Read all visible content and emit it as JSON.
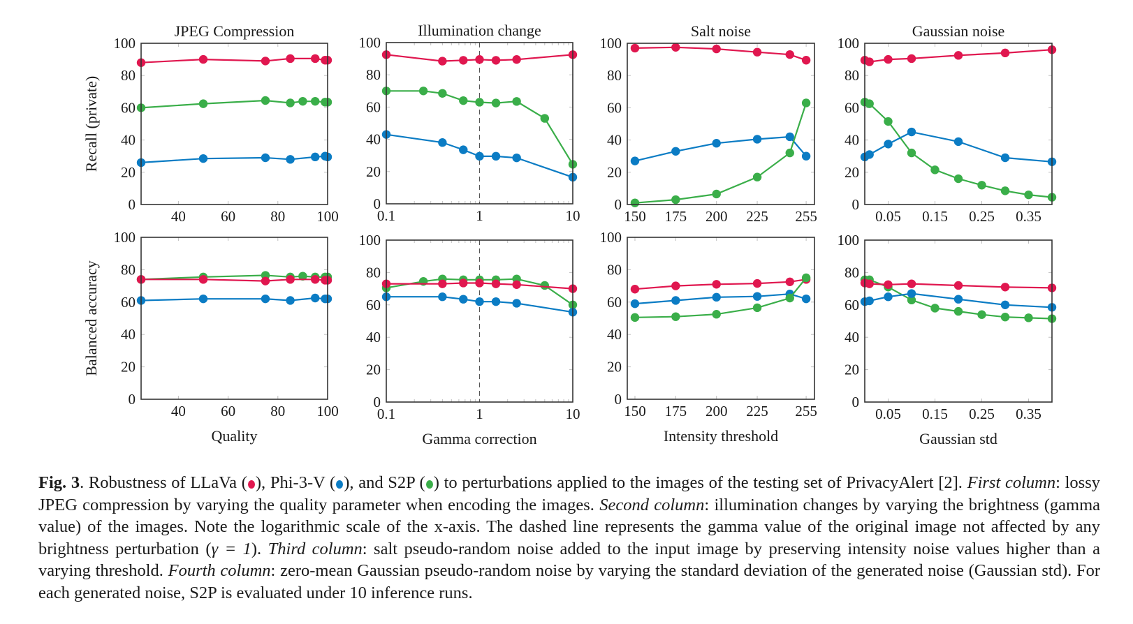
{
  "colors": {
    "LLaVa": "#e0174f",
    "Phi-3-V": "#0b7cc4",
    "S2P": "#3aae49",
    "frame": "#333333",
    "grid": "#bfbfbf"
  },
  "chart_data": [
    {
      "type": "line",
      "id": "jpeg-recall",
      "title": "JPEG Compression",
      "xlabel": "",
      "ylabel": "Recall (private)",
      "xscale": "linear",
      "xlim": [
        25,
        100
      ],
      "ylim": [
        0,
        100
      ],
      "xticks": [
        40,
        60,
        80,
        100
      ],
      "xtick_labels": [
        "40",
        "60",
        "80",
        "100"
      ],
      "yticks": [
        0,
        20,
        40,
        60,
        80,
        100
      ],
      "ytick_labels": [
        "0",
        "20",
        "40",
        "60",
        "80",
        "100"
      ],
      "series": [
        {
          "name": "LLaVa",
          "x": [
            25,
            50,
            75,
            85,
            95,
            99,
            100
          ],
          "y": [
            88,
            90,
            89,
            90.5,
            90.5,
            89.5,
            89.5
          ]
        },
        {
          "name": "S2P",
          "x": [
            25,
            50,
            75,
            85,
            90,
            95,
            99,
            100
          ],
          "y": [
            60,
            62.5,
            64.5,
            63,
            64,
            64,
            63.5,
            63.5
          ]
        },
        {
          "name": "Phi-3-V",
          "x": [
            25,
            50,
            75,
            85,
            95,
            99,
            100
          ],
          "y": [
            26,
            28.5,
            29,
            28,
            29.5,
            30,
            29.5
          ]
        }
      ]
    },
    {
      "type": "line",
      "id": "illum-recall",
      "title": "Illumination change",
      "xlabel": "",
      "ylabel": "",
      "xscale": "log",
      "xlim": [
        0.1,
        10
      ],
      "ylim": [
        0,
        100
      ],
      "vline": 1,
      "xticks": [
        0.1,
        1,
        10
      ],
      "xtick_labels": [
        "0.1",
        "1",
        "10"
      ],
      "yticks": [
        0,
        20,
        40,
        60,
        80,
        100
      ],
      "ytick_labels": [
        "0",
        "20",
        "40",
        "60",
        "80",
        "100"
      ],
      "series": [
        {
          "name": "LLaVa",
          "x": [
            0.1,
            0.4,
            0.67,
            1,
            1.5,
            2.5,
            10
          ],
          "y": [
            92.5,
            88.5,
            89,
            89.5,
            89,
            89.5,
            92.5
          ]
        },
        {
          "name": "S2P",
          "x": [
            0.1,
            0.25,
            0.4,
            0.67,
            1,
            1.5,
            2.5,
            5,
            10
          ],
          "y": [
            70,
            70,
            68.5,
            64,
            63,
            62.5,
            63.5,
            53,
            24.5
          ]
        },
        {
          "name": "Phi-3-V",
          "x": [
            0.1,
            0.4,
            0.67,
            1,
            1.5,
            2.5,
            10
          ],
          "y": [
            43,
            38,
            33.5,
            29.5,
            29.5,
            28.5,
            16.5
          ]
        }
      ]
    },
    {
      "type": "line",
      "id": "salt-recall",
      "title": "Salt noise",
      "xlabel": "",
      "ylabel": "",
      "xscale": "linear",
      "xlim": [
        145.3,
        260.1
      ],
      "ylim": [
        0,
        100
      ],
      "xticks": [
        150,
        175,
        200,
        225,
        255
      ],
      "xtick_labels": [
        "150",
        "175",
        "200",
        "225",
        "255"
      ],
      "yticks": [
        0,
        20,
        40,
        60,
        80,
        100
      ],
      "ytick_labels": [
        "0",
        "20",
        "40",
        "60",
        "80",
        "100"
      ],
      "series": [
        {
          "name": "LLaVa",
          "x": [
            150,
            175,
            200,
            225,
            245,
            255
          ],
          "y": [
            97,
            97.5,
            96.5,
            94.5,
            93,
            89.5
          ]
        },
        {
          "name": "Phi-3-V",
          "x": [
            150,
            175,
            200,
            225,
            245,
            255
          ],
          "y": [
            27,
            33,
            38,
            40.5,
            42,
            30
          ]
        },
        {
          "name": "S2P",
          "x": [
            150,
            175,
            200,
            225,
            245,
            255
          ],
          "y": [
            1,
            3,
            6.5,
            17,
            32,
            63
          ]
        }
      ]
    },
    {
      "type": "line",
      "id": "gauss-recall",
      "title": "Gaussian noise",
      "xlabel": "",
      "ylabel": "",
      "xscale": "linear",
      "xlim": [
        0,
        0.4
      ],
      "ylim": [
        0,
        100
      ],
      "xticks": [
        0.05,
        0.15,
        0.25,
        0.35
      ],
      "xtick_labels": [
        "0.05",
        "0.15",
        "0.25",
        "0.35"
      ],
      "yticks": [
        0,
        20,
        40,
        60,
        80,
        100
      ],
      "ytick_labels": [
        "0",
        "20",
        "40",
        "60",
        "80",
        "100"
      ],
      "series": [
        {
          "name": "LLaVa",
          "x": [
            0,
            0.01,
            0.05,
            0.1,
            0.2,
            0.3,
            0.4
          ],
          "y": [
            89.5,
            88.5,
            90,
            90.5,
            92.5,
            94,
            96
          ]
        },
        {
          "name": "S2P",
          "x": [
            0,
            0.01,
            0.05,
            0.1,
            0.15,
            0.2,
            0.25,
            0.3,
            0.35,
            0.4
          ],
          "y": [
            63.5,
            62.5,
            51.5,
            32,
            21.5,
            16,
            12,
            8.5,
            6,
            4.5
          ]
        },
        {
          "name": "Phi-3-V",
          "x": [
            0,
            0.01,
            0.05,
            0.1,
            0.2,
            0.3,
            0.4
          ],
          "y": [
            29.5,
            31,
            37.5,
            45,
            39,
            29,
            26.5
          ]
        }
      ]
    },
    {
      "type": "line",
      "id": "jpeg-ba",
      "title": "",
      "xlabel": "Quality",
      "ylabel": "Balanced accuracy",
      "xscale": "linear",
      "xlim": [
        25,
        100
      ],
      "ylim": [
        0,
        100
      ],
      "xticks": [
        40,
        60,
        80,
        100
      ],
      "xtick_labels": [
        "40",
        "60",
        "80",
        "100"
      ],
      "yticks": [
        0,
        20,
        40,
        60,
        80,
        100
      ],
      "ytick_labels": [
        "0",
        "20",
        "40",
        "60",
        "80",
        "100"
      ],
      "series": [
        {
          "name": "S2P",
          "x": [
            25,
            50,
            75,
            85,
            90,
            95,
            99,
            100
          ],
          "y": [
            74,
            75.5,
            76.5,
            75.5,
            76,
            75.5,
            75.5,
            75.5
          ]
        },
        {
          "name": "LLaVa",
          "x": [
            25,
            50,
            75,
            85,
            95,
            99,
            100
          ],
          "y": [
            74,
            74,
            73,
            74,
            74,
            73.5,
            73.5
          ]
        },
        {
          "name": "Phi-3-V",
          "x": [
            25,
            50,
            75,
            85,
            95,
            99,
            100
          ],
          "y": [
            61,
            62,
            62,
            61,
            62.5,
            62,
            62
          ]
        }
      ]
    },
    {
      "type": "line",
      "id": "illum-ba",
      "title": "",
      "xlabel": "Gamma correction",
      "ylabel": "",
      "xscale": "log",
      "xlim": [
        0.1,
        10
      ],
      "ylim": [
        0,
        100
      ],
      "vline": 1,
      "xticks": [
        0.1,
        1,
        10
      ],
      "xtick_labels": [
        "0.1",
        "1",
        "10"
      ],
      "yticks": [
        0,
        20,
        40,
        60,
        80,
        100
      ],
      "ytick_labels": [
        "0",
        "20",
        "40",
        "60",
        "80",
        "100"
      ],
      "series": [
        {
          "name": "S2P",
          "x": [
            0.1,
            0.25,
            0.4,
            0.67,
            1,
            1.5,
            2.5,
            5,
            10
          ],
          "y": [
            70.5,
            74.5,
            76,
            75.5,
            75.5,
            75.5,
            76,
            72,
            60
          ]
        },
        {
          "name": "LLaVa",
          "x": [
            0.1,
            0.4,
            0.67,
            1,
            1.5,
            2.5,
            10
          ],
          "y": [
            73,
            73,
            73.5,
            73.5,
            73,
            72.5,
            70
          ]
        },
        {
          "name": "Phi-3-V",
          "x": [
            0.1,
            0.4,
            0.67,
            1,
            1.5,
            2.5,
            10
          ],
          "y": [
            65,
            65,
            63.5,
            62,
            62,
            61,
            55.5
          ]
        }
      ]
    },
    {
      "type": "line",
      "id": "salt-ba",
      "title": "",
      "xlabel": "Intensity threshold",
      "ylabel": "",
      "xscale": "linear",
      "xlim": [
        145.3,
        260.1
      ],
      "ylim": [
        0,
        100
      ],
      "xticks": [
        150,
        175,
        200,
        225,
        255
      ],
      "xtick_labels": [
        "150",
        "175",
        "200",
        "225",
        "255"
      ],
      "yticks": [
        0,
        20,
        40,
        60,
        80,
        100
      ],
      "ytick_labels": [
        "0",
        "20",
        "40",
        "60",
        "80",
        "100"
      ],
      "series": [
        {
          "name": "LLaVa",
          "x": [
            150,
            175,
            200,
            225,
            245,
            255
          ],
          "y": [
            68,
            70,
            71,
            71.5,
            72.5,
            74
          ]
        },
        {
          "name": "Phi-3-V",
          "x": [
            150,
            175,
            200,
            225,
            245,
            255
          ],
          "y": [
            59,
            61,
            63,
            63.5,
            65,
            62
          ]
        },
        {
          "name": "S2P",
          "x": [
            150,
            175,
            200,
            225,
            245,
            255
          ],
          "y": [
            50.5,
            51,
            52.5,
            56.5,
            62.5,
            75
          ]
        }
      ]
    },
    {
      "type": "line",
      "id": "gauss-ba",
      "title": "",
      "xlabel": "Gaussian std",
      "ylabel": "",
      "xscale": "linear",
      "xlim": [
        0,
        0.4
      ],
      "ylim": [
        0,
        100
      ],
      "xticks": [
        0.05,
        0.15,
        0.25,
        0.35
      ],
      "xtick_labels": [
        "0.05",
        "0.15",
        "0.25",
        "0.35"
      ],
      "yticks": [
        0,
        20,
        40,
        60,
        80,
        100
      ],
      "ytick_labels": [
        "0",
        "20",
        "40",
        "60",
        "80",
        "100"
      ],
      "series": [
        {
          "name": "S2P",
          "x": [
            0,
            0.01,
            0.05,
            0.1,
            0.15,
            0.2,
            0.25,
            0.3,
            0.35,
            0.4
          ],
          "y": [
            75.5,
            75.5,
            71,
            63,
            58,
            56,
            54,
            52.5,
            52,
            51.5
          ]
        },
        {
          "name": "LLaVa",
          "x": [
            0,
            0.01,
            0.05,
            0.1,
            0.2,
            0.3,
            0.4
          ],
          "y": [
            73.5,
            73,
            72.5,
            73,
            72,
            71,
            70.5
          ]
        },
        {
          "name": "Phi-3-V",
          "x": [
            0,
            0.01,
            0.05,
            0.1,
            0.2,
            0.3,
            0.4
          ],
          "y": [
            62,
            62.5,
            65,
            67,
            63.5,
            60,
            58.5
          ]
        }
      ]
    }
  ],
  "caption": {
    "fig_label": "Fig. 3",
    "p1": ". Robustness of LLaVa (",
    "p2": "), Phi-3-V (",
    "p3": "), and S2P (",
    "p4": ") to perturbations applied to the images of the testing set of PrivacyAlert [2]. ",
    "first_col": "First column",
    "p5": ": lossy JPEG compression by varying the quality parameter when encoding the images. ",
    "second_col": "Second column",
    "p6": ": illumination changes by varying the brightness (gamma value) of the images. Note the logarithmic scale of the x-axis. The dashed line represents the gamma value of the original image not affected by any brightness perturbation (",
    "gamma": "γ = 1",
    "p7": "). ",
    "third_col": "Third column",
    "p8": ": salt pseudo-random noise added to the input image by preserving intensity noise values higher than a varying threshold. ",
    "fourth_col": "Fourth column",
    "p9": ": zero-mean Gaussian pseudo-random noise by varying the standard deviation of the generated noise (Gaussian std). For each generated noise, S2P is evaluated under 10 inference runs."
  }
}
